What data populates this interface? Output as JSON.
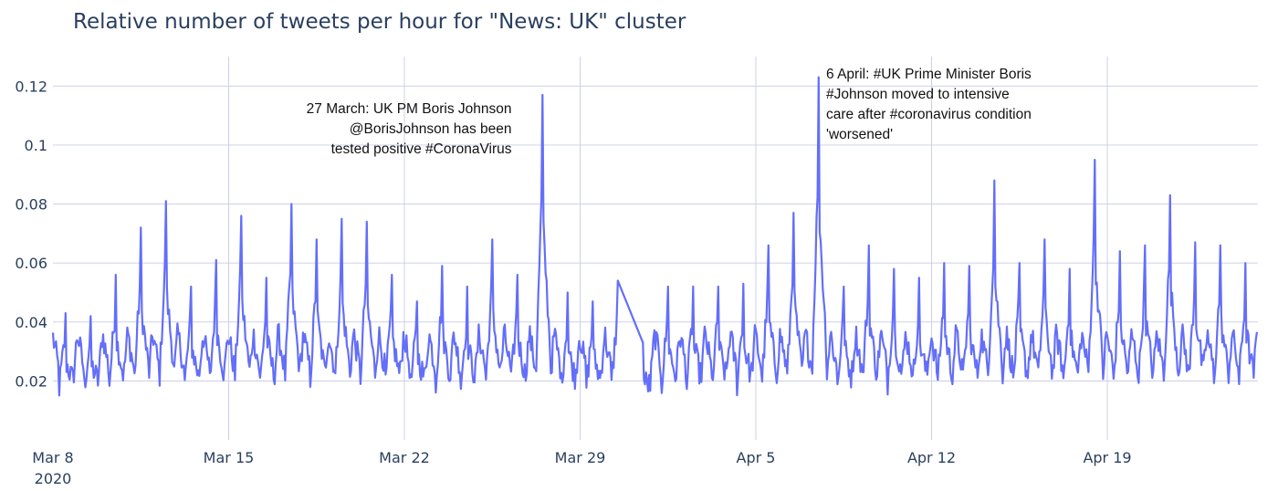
{
  "chart_data": {
    "type": "line",
    "title": "Relative number of tweets per hour for \"News: UK\" cluster",
    "xlabel": "",
    "ylabel": "",
    "x_range": [
      "2020-03-08",
      "2020-04-25"
    ],
    "ylim": [
      0.0,
      0.13
    ],
    "grid": true,
    "legend": "none",
    "x_ticks": [
      {
        "date": "2020-03-08",
        "label": "Mar 8",
        "sublabel": "2020"
      },
      {
        "date": "2020-03-15",
        "label": "Mar 15"
      },
      {
        "date": "2020-03-22",
        "label": "Mar 22"
      },
      {
        "date": "2020-03-29",
        "label": "Mar 29"
      },
      {
        "date": "2020-04-05",
        "label": "Apr 5"
      },
      {
        "date": "2020-04-12",
        "label": "Apr 12"
      },
      {
        "date": "2020-04-19",
        "label": "Apr 19"
      }
    ],
    "y_ticks": [
      {
        "value": 0.02,
        "label": "0.02"
      },
      {
        "value": 0.04,
        "label": "0.04"
      },
      {
        "value": 0.06,
        "label": "0.06"
      },
      {
        "value": 0.08,
        "label": "0.08"
      },
      {
        "value": 0.1,
        "label": "0.1"
      },
      {
        "value": 0.12,
        "label": "0.12"
      }
    ],
    "series": [
      {
        "color": "#636efa",
        "daily_peaks": [
          {
            "date": "2020-03-08",
            "peak": 0.043
          },
          {
            "date": "2020-03-09",
            "peak": 0.042
          },
          {
            "date": "2020-03-10",
            "peak": 0.056
          },
          {
            "date": "2020-03-11",
            "peak": 0.072
          },
          {
            "date": "2020-03-12",
            "peak": 0.081
          },
          {
            "date": "2020-03-13",
            "peak": 0.052
          },
          {
            "date": "2020-03-14",
            "peak": 0.061
          },
          {
            "date": "2020-03-15",
            "peak": 0.076
          },
          {
            "date": "2020-03-16",
            "peak": 0.055
          },
          {
            "date": "2020-03-17",
            "peak": 0.08
          },
          {
            "date": "2020-03-18",
            "peak": 0.068
          },
          {
            "date": "2020-03-19",
            "peak": 0.075
          },
          {
            "date": "2020-03-20",
            "peak": 0.074
          },
          {
            "date": "2020-03-21",
            "peak": 0.056
          },
          {
            "date": "2020-03-22",
            "peak": 0.047
          },
          {
            "date": "2020-03-23",
            "peak": 0.059
          },
          {
            "date": "2020-03-24",
            "peak": 0.052
          },
          {
            "date": "2020-03-25",
            "peak": 0.068
          },
          {
            "date": "2020-03-26",
            "peak": 0.056
          },
          {
            "date": "2020-03-27",
            "peak": 0.117
          },
          {
            "date": "2020-03-28",
            "peak": 0.05
          },
          {
            "date": "2020-03-29",
            "peak": 0.047
          },
          {
            "date": "2020-03-30",
            "peak": 0.054
          },
          {
            "date": "2020-03-31",
            "peak": 0.033
          },
          {
            "date": "2020-04-01",
            "peak": 0.052
          },
          {
            "date": "2020-04-02",
            "peak": 0.052
          },
          {
            "date": "2020-04-03",
            "peak": 0.052
          },
          {
            "date": "2020-04-04",
            "peak": 0.053
          },
          {
            "date": "2020-04-05",
            "peak": 0.066
          },
          {
            "date": "2020-04-06",
            "peak": 0.077
          },
          {
            "date": "2020-04-07",
            "peak": 0.123
          },
          {
            "date": "2020-04-08",
            "peak": 0.052
          },
          {
            "date": "2020-04-09",
            "peak": 0.066
          },
          {
            "date": "2020-04-10",
            "peak": 0.058
          },
          {
            "date": "2020-04-11",
            "peak": 0.055
          },
          {
            "date": "2020-04-12",
            "peak": 0.06
          },
          {
            "date": "2020-04-13",
            "peak": 0.059
          },
          {
            "date": "2020-04-14",
            "peak": 0.088
          },
          {
            "date": "2020-04-15",
            "peak": 0.06
          },
          {
            "date": "2020-04-16",
            "peak": 0.068
          },
          {
            "date": "2020-04-17",
            "peak": 0.058
          },
          {
            "date": "2020-04-18",
            "peak": 0.095
          },
          {
            "date": "2020-04-19",
            "peak": 0.064
          },
          {
            "date": "2020-04-20",
            "peak": 0.066
          },
          {
            "date": "2020-04-21",
            "peak": 0.083
          },
          {
            "date": "2020-04-22",
            "peak": 0.067
          },
          {
            "date": "2020-04-23",
            "peak": 0.066
          },
          {
            "date": "2020-04-24",
            "peak": 0.06
          }
        ],
        "daily_trough": 0.015,
        "gap": {
          "start": "2020-03-30T12:00",
          "end": "2020-03-31T12:00",
          "y_start": 0.024,
          "y_end": 0.033
        }
      }
    ],
    "annotations": [
      {
        "date": "2020-03-27",
        "anchor": "end",
        "lines": [
          "27 March: UK PM Boris Johnson",
          "@BorisJohnson has been",
          "tested positive #CoronaVirus"
        ]
      },
      {
        "date": "2020-04-07",
        "anchor": "start",
        "lines": [
          "6 April: #UK Prime Minister Boris",
          "#Johnson moved to intensive",
          "care after #coronavirus condition",
          "'worsened'"
        ]
      }
    ]
  }
}
